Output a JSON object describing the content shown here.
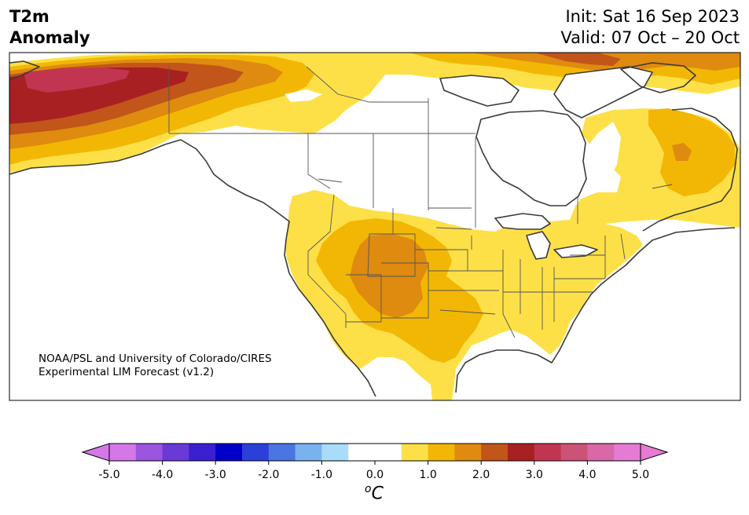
{
  "title": {
    "left_line1": "T2m",
    "left_line2": "Anomaly",
    "right_line1": "Init: Sat 16 Sep 2023",
    "right_line2": "Valid: 07 Oct – 20 Oct"
  },
  "credit": {
    "line1": "NOAA/PSL and University of Colorado/CIRES",
    "line2": "Experimental LIM Forecast (v1.2)"
  },
  "colorbar": {
    "unit_base": "C",
    "unit_prefix": "o",
    "colors": [
      "#d478e8",
      "#9b55de",
      "#6a3ad8",
      "#3a20d0",
      "#0000c8",
      "#2a40d8",
      "#4a75e2",
      "#78b2ef",
      "#a9dcf9",
      "#ffffff",
      "#ffffff",
      "#fde047",
      "#f2b705",
      "#de8b10",
      "#c25519",
      "#a92022",
      "#c23550",
      "#cc5278",
      "#d868a6",
      "#e57bd2"
    ],
    "under_color": "#d478e8",
    "over_color": "#e57bd2",
    "ticks": [
      "-5.0",
      "-4.0",
      "-3.0",
      "-2.0",
      "-1.0",
      "0.0",
      "1.0",
      "2.0",
      "3.0",
      "4.0",
      "5.0"
    ]
  },
  "map": {
    "legend_colors": {
      "ocean": "#ffffff",
      "land_neutral": "#ffffff",
      "anom_0_5": "#fde047",
      "anom_1_0": "#f2b705",
      "anom_1_5": "#de8b10",
      "anom_2_0": "#c25519",
      "anom_2_5": "#a92022",
      "anom_3_0": "#c23550"
    }
  }
}
